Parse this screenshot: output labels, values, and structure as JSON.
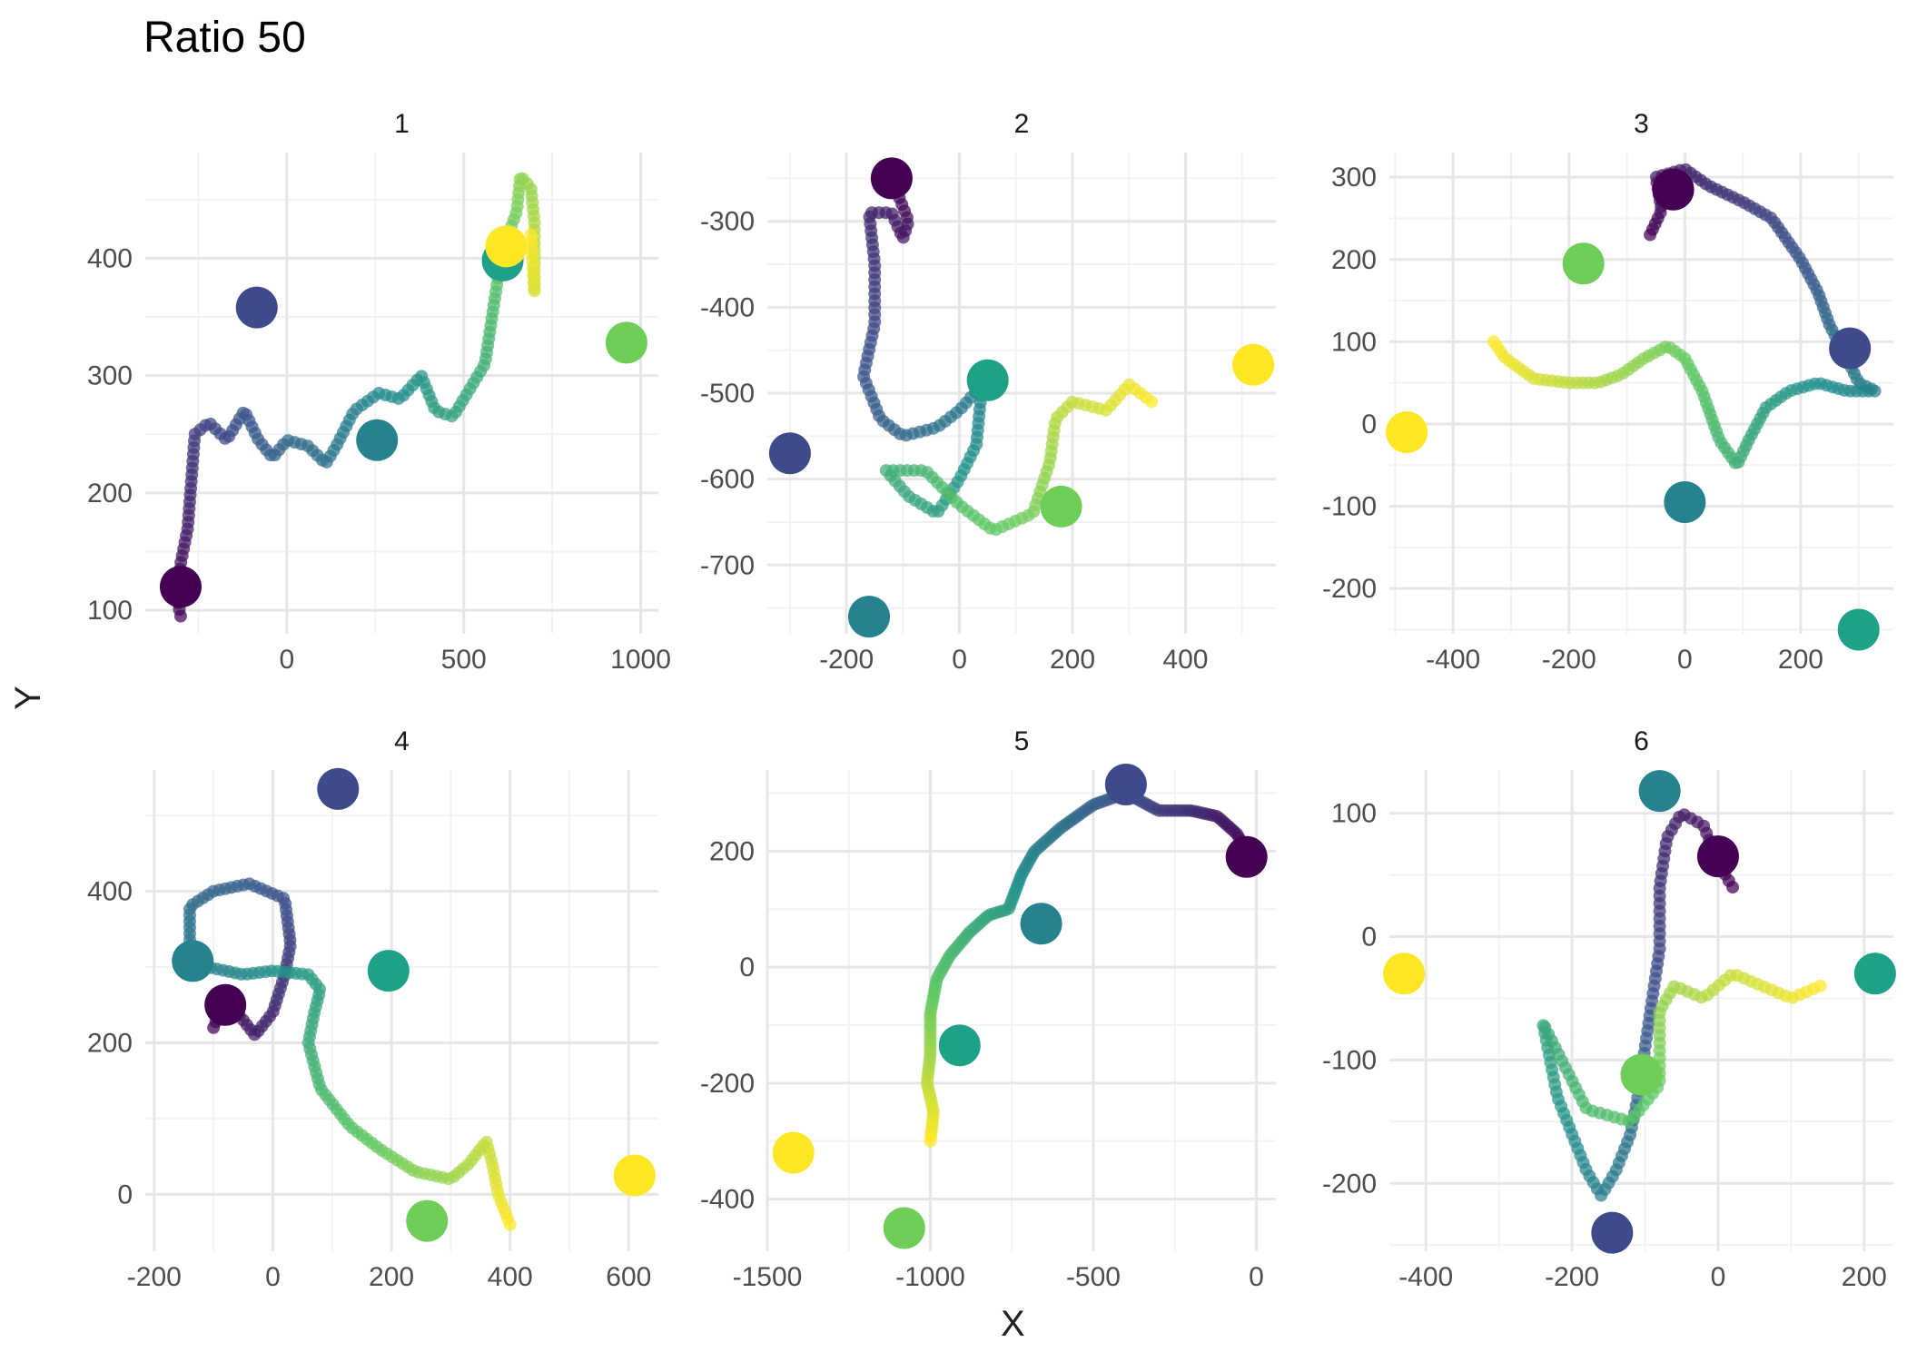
{
  "title": "Ratio 50",
  "xlabel": "X",
  "ylabel": "Y",
  "chart_data": {
    "type": "scatter",
    "title": "Ratio 50",
    "xlabel": "X",
    "ylabel": "Y",
    "grid": true,
    "legend": "none",
    "color_scale": [
      "#440154",
      "#3b528b",
      "#21908c",
      "#5dc863",
      "#fde725"
    ],
    "marker_colors": [
      "#440154",
      "#3e4a89",
      "#26828e",
      "#1fa187",
      "#6ece58",
      "#fde725"
    ],
    "panels": [
      {
        "label": "1",
        "xlim": [
          -400,
          1050
        ],
        "ylim": [
          80,
          490
        ],
        "xticks": [
          0,
          500,
          1000
        ],
        "yticks": [
          100,
          200,
          300,
          400
        ],
        "path": [
          [
            -300,
            95
          ],
          [
            -310,
            110
          ],
          [
            -300,
            140
          ],
          [
            -280,
            170
          ],
          [
            -270,
            210
          ],
          [
            -260,
            250
          ],
          [
            -220,
            260
          ],
          [
            -170,
            245
          ],
          [
            -120,
            270
          ],
          [
            -80,
            245
          ],
          [
            -40,
            230
          ],
          [
            0,
            245
          ],
          [
            60,
            240
          ],
          [
            110,
            225
          ],
          [
            140,
            240
          ],
          [
            190,
            270
          ],
          [
            260,
            285
          ],
          [
            320,
            280
          ],
          [
            380,
            300
          ],
          [
            420,
            270
          ],
          [
            470,
            265
          ],
          [
            520,
            290
          ],
          [
            560,
            310
          ],
          [
            580,
            350
          ],
          [
            600,
            390
          ],
          [
            620,
            415
          ],
          [
            650,
            440
          ],
          [
            660,
            470
          ],
          [
            690,
            460
          ],
          [
            700,
            430
          ],
          [
            700,
            370
          ],
          [
            690,
            420
          ]
        ],
        "markers": [
          [
            -300,
            120
          ],
          [
            -85,
            358
          ],
          [
            255,
            245
          ],
          [
            610,
            398
          ],
          [
            960,
            328
          ],
          [
            620,
            410
          ]
        ]
      },
      {
        "label": "2",
        "xlim": [
          -340,
          560
        ],
        "ylim": [
          -780,
          -220
        ],
        "xticks": [
          -200,
          0,
          200,
          400
        ],
        "yticks": [
          -700,
          -600,
          -500,
          -400,
          -300
        ],
        "path": [
          [
            -120,
            -250
          ],
          [
            -90,
            -300
          ],
          [
            -100,
            -320
          ],
          [
            -120,
            -290
          ],
          [
            -160,
            -290
          ],
          [
            -150,
            -350
          ],
          [
            -150,
            -420
          ],
          [
            -170,
            -480
          ],
          [
            -140,
            -530
          ],
          [
            -100,
            -550
          ],
          [
            -40,
            -540
          ],
          [
            0,
            -520
          ],
          [
            40,
            -490
          ],
          [
            30,
            -560
          ],
          [
            0,
            -600
          ],
          [
            -40,
            -640
          ],
          [
            -90,
            -620
          ],
          [
            -130,
            -590
          ],
          [
            -60,
            -590
          ],
          [
            0,
            -630
          ],
          [
            60,
            -660
          ],
          [
            130,
            -640
          ],
          [
            160,
            -580
          ],
          [
            170,
            -530
          ],
          [
            200,
            -510
          ],
          [
            260,
            -520
          ],
          [
            300,
            -490
          ],
          [
            340,
            -510
          ]
        ],
        "markers": [
          [
            -120,
            -250
          ],
          [
            -300,
            -570
          ],
          [
            -160,
            -760
          ],
          [
            50,
            -485
          ],
          [
            180,
            -632
          ],
          [
            520,
            -467
          ]
        ]
      },
      {
        "label": "3",
        "xlim": [
          -510,
          360
        ],
        "ylim": [
          -255,
          330
        ],
        "xticks": [
          -400,
          -200,
          0,
          200
        ],
        "yticks": [
          -200,
          -100,
          0,
          100,
          200,
          300
        ],
        "path": [
          [
            -60,
            230
          ],
          [
            -40,
            260
          ],
          [
            -50,
            300
          ],
          [
            0,
            310
          ],
          [
            40,
            290
          ],
          [
            100,
            270
          ],
          [
            150,
            250
          ],
          [
            200,
            200
          ],
          [
            230,
            160
          ],
          [
            250,
            120
          ],
          [
            280,
            80
          ],
          [
            300,
            50
          ],
          [
            330,
            40
          ],
          [
            280,
            40
          ],
          [
            230,
            50
          ],
          [
            180,
            40
          ],
          [
            140,
            20
          ],
          [
            110,
            -20
          ],
          [
            90,
            -50
          ],
          [
            60,
            -20
          ],
          [
            30,
            40
          ],
          [
            0,
            80
          ],
          [
            -30,
            95
          ],
          [
            -70,
            80
          ],
          [
            -110,
            60
          ],
          [
            -150,
            50
          ],
          [
            -200,
            50
          ],
          [
            -260,
            55
          ],
          [
            -310,
            80
          ],
          [
            -330,
            100
          ]
        ],
        "markers": [
          [
            -20,
            285
          ],
          [
            285,
            92
          ],
          [
            0,
            -95
          ],
          [
            300,
            -250
          ],
          [
            -175,
            195
          ],
          [
            -480,
            -10
          ]
        ]
      },
      {
        "label": "4",
        "xlim": [
          -215,
          650
        ],
        "ylim": [
          -75,
          560
        ],
        "xticks": [
          -200,
          0,
          200,
          400,
          600
        ],
        "yticks": [
          0,
          200,
          400
        ],
        "path": [
          [
            -100,
            220
          ],
          [
            -80,
            260
          ],
          [
            -60,
            240
          ],
          [
            -30,
            210
          ],
          [
            0,
            240
          ],
          [
            20,
            290
          ],
          [
            30,
            330
          ],
          [
            20,
            390
          ],
          [
            -40,
            410
          ],
          [
            -100,
            400
          ],
          [
            -140,
            380
          ],
          [
            -140,
            330
          ],
          [
            -110,
            300
          ],
          [
            -50,
            290
          ],
          [
            0,
            295
          ],
          [
            60,
            290
          ],
          [
            80,
            270
          ],
          [
            70,
            240
          ],
          [
            60,
            200
          ],
          [
            80,
            140
          ],
          [
            130,
            90
          ],
          [
            180,
            60
          ],
          [
            240,
            30
          ],
          [
            300,
            20
          ],
          [
            330,
            40
          ],
          [
            360,
            70
          ],
          [
            370,
            40
          ],
          [
            380,
            0
          ],
          [
            400,
            -40
          ]
        ],
        "markers": [
          [
            -80,
            250
          ],
          [
            110,
            535
          ],
          [
            -135,
            308
          ],
          [
            195,
            295
          ],
          [
            260,
            -35
          ],
          [
            610,
            25
          ]
        ]
      },
      {
        "label": "5",
        "xlim": [
          -1500,
          60
        ],
        "ylim": [
          -490,
          340
        ],
        "xticks": [
          -1500,
          -1000,
          -500,
          0
        ],
        "yticks": [
          -400,
          -200,
          0,
          200
        ],
        "path": [
          [
            -30,
            200
          ],
          [
            -60,
            230
          ],
          [
            -120,
            260
          ],
          [
            -200,
            270
          ],
          [
            -300,
            270
          ],
          [
            -400,
            300
          ],
          [
            -500,
            280
          ],
          [
            -600,
            240
          ],
          [
            -680,
            200
          ],
          [
            -720,
            160
          ],
          [
            -760,
            100
          ],
          [
            -820,
            90
          ],
          [
            -880,
            60
          ],
          [
            -940,
            20
          ],
          [
            -980,
            -20
          ],
          [
            -1000,
            -80
          ],
          [
            -1000,
            -150
          ],
          [
            -1010,
            -200
          ],
          [
            -990,
            -250
          ],
          [
            -1000,
            -300
          ]
        ],
        "markers": [
          [
            -30,
            190
          ],
          [
            -400,
            315
          ],
          [
            -660,
            75
          ],
          [
            -910,
            -135
          ],
          [
            -1080,
            -450
          ],
          [
            -1420,
            -320
          ]
        ]
      },
      {
        "label": "6",
        "xlim": [
          -450,
          240
        ],
        "ylim": [
          -255,
          135
        ],
        "xticks": [
          -400,
          -200,
          0,
          200
        ],
        "yticks": [
          -200,
          -100,
          0,
          100
        ],
        "path": [
          [
            20,
            40
          ],
          [
            0,
            60
          ],
          [
            -20,
            90
          ],
          [
            -50,
            100
          ],
          [
            -70,
            80
          ],
          [
            -80,
            40
          ],
          [
            -80,
            -10
          ],
          [
            -90,
            -50
          ],
          [
            -100,
            -90
          ],
          [
            -110,
            -130
          ],
          [
            -120,
            -160
          ],
          [
            -140,
            -190
          ],
          [
            -160,
            -210
          ],
          [
            -180,
            -190
          ],
          [
            -200,
            -160
          ],
          [
            -220,
            -130
          ],
          [
            -230,
            -100
          ],
          [
            -240,
            -70
          ],
          [
            -180,
            -140
          ],
          [
            -120,
            -150
          ],
          [
            -80,
            -120
          ],
          [
            -80,
            -60
          ],
          [
            -60,
            -40
          ],
          [
            -20,
            -50
          ],
          [
            20,
            -30
          ],
          [
            60,
            -40
          ],
          [
            100,
            -50
          ],
          [
            140,
            -40
          ]
        ],
        "markers": [
          [
            0,
            65
          ],
          [
            -145,
            -240
          ],
          [
            -80,
            118
          ],
          [
            215,
            -30
          ],
          [
            -105,
            -112
          ],
          [
            -430,
            -30
          ]
        ]
      }
    ]
  }
}
